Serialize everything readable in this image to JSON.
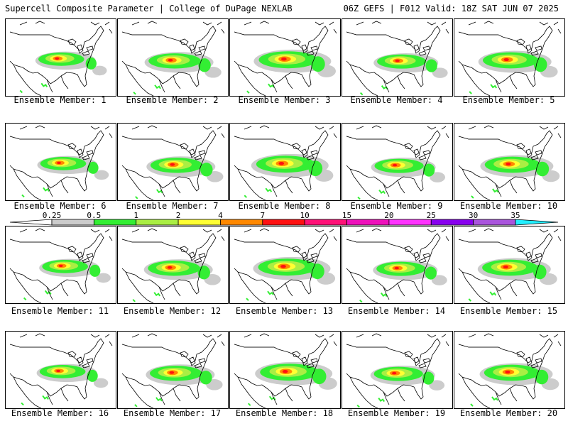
{
  "header": {
    "title": "Supercell Composite Parameter | College of DuPage NEXLAB",
    "run_info": "06Z GEFS | F012 Valid: 18Z SAT JUN 07 2025"
  },
  "colors": {
    "map_outline": "#000000",
    "background": "#ffffff"
  },
  "colorbar": {
    "bins": [
      {
        "label": "0.25",
        "color": "#ffffff"
      },
      {
        "label": "0.5",
        "color": "#cccccc"
      },
      {
        "label": "1",
        "color": "#33ee33"
      },
      {
        "label": "2",
        "color": "#aaee44"
      },
      {
        "label": "4",
        "color": "#ffff33"
      },
      {
        "label": "7",
        "color": "#ff8800"
      },
      {
        "label": "10",
        "color": "#ff1111"
      },
      {
        "label": "15",
        "color": "#ff1177"
      },
      {
        "label": "20",
        "color": "#ee11bb"
      },
      {
        "label": "25",
        "color": "#ff33ff"
      },
      {
        "label": "30",
        "color": "#8800ee"
      },
      {
        "label": "35",
        "color": "#aa55dd"
      }
    ],
    "top_color": "#22eeff"
  },
  "members": [
    {
      "label": "Ensemble Member: 1"
    },
    {
      "label": "Ensemble Member: 2"
    },
    {
      "label": "Ensemble Member: 3"
    },
    {
      "label": "Ensemble Member: 4"
    },
    {
      "label": "Ensemble Member: 5"
    },
    {
      "label": "Ensemble Member: 6"
    },
    {
      "label": "Ensemble Member: 7"
    },
    {
      "label": "Ensemble Member: 8"
    },
    {
      "label": "Ensemble Member: 9"
    },
    {
      "label": "Ensemble Member: 10"
    },
    {
      "label": "Ensemble Member: 11"
    },
    {
      "label": "Ensemble Member: 12"
    },
    {
      "label": "Ensemble Member: 13"
    },
    {
      "label": "Ensemble Member: 14"
    },
    {
      "label": "Ensemble Member: 15"
    },
    {
      "label": "Ensemble Member: 16"
    },
    {
      "label": "Ensemble Member: 17"
    },
    {
      "label": "Ensemble Member: 18"
    },
    {
      "label": "Ensemble Member: 19"
    },
    {
      "label": "Ensemble Member: 20"
    }
  ]
}
